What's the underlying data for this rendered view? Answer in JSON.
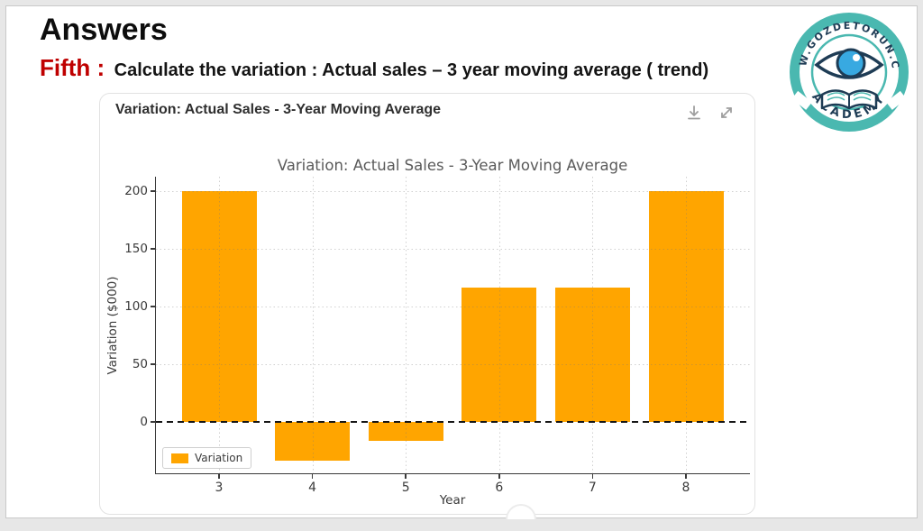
{
  "slide": {
    "heading": "Answers",
    "subtitle_label": "Fifth :",
    "subtitle_text": "Calculate the variation : Actual sales – 3 year moving average ( trend)"
  },
  "logo": {
    "ring_text": "WWW.GOZDETORUN.COM",
    "bottom_text": "ACADEMY",
    "teal": "#4ab8b0",
    "navy": "#1e3c55",
    "iris_blue": "#38a9e1"
  },
  "panel": {
    "title": "Variation: Actual Sales - 3-Year Moving Average",
    "icons": [
      "download-icon",
      "expand-icon"
    ]
  },
  "chart_data": {
    "type": "bar",
    "title": "Variation: Actual Sales - 3-Year Moving Average",
    "xlabel": "Year",
    "ylabel": "Variation ($000)",
    "categories": [
      "3",
      "4",
      "5",
      "6",
      "7",
      "8"
    ],
    "values": [
      200,
      -33.3,
      -16.7,
      116.7,
      116.7,
      200
    ],
    "legend_label": "Variation",
    "bar_color": "#FFA500",
    "yticks": [
      0,
      50,
      100,
      150,
      200
    ],
    "ylim": [
      -45,
      212
    ],
    "grid": true,
    "zero_line": "dashed black at y=0",
    "legend_position": "lower-left"
  }
}
